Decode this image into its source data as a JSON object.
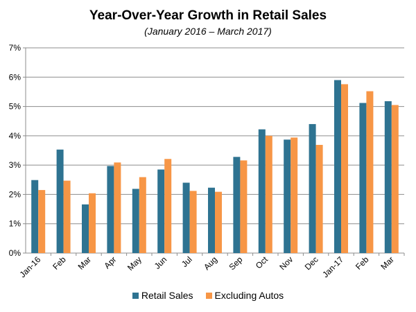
{
  "chart_data": {
    "type": "bar",
    "title": "Year-Over-Year  Growth  in Retail Sales",
    "subtitle": "(January 2016 – March 2017)",
    "xlabel": "",
    "ylabel": "",
    "ylim": [
      0,
      7
    ],
    "yticks": [
      "0%",
      "1%",
      "2%",
      "3%",
      "4%",
      "5%",
      "6%",
      "7%"
    ],
    "categories": [
      "Jan-16",
      "Feb",
      "Mar",
      "Apr",
      "May",
      "Jun",
      "Jul",
      "Aug",
      "Sep",
      "Oct",
      "Nov",
      "Dec",
      "Jan-17",
      "Feb",
      "Mar"
    ],
    "series": [
      {
        "name": "Retail Sales",
        "color": "#2e7391",
        "values": [
          2.49,
          3.53,
          1.66,
          2.97,
          2.19,
          2.85,
          2.4,
          2.23,
          3.28,
          4.22,
          3.87,
          4.4,
          5.9,
          5.12,
          5.18
        ]
      },
      {
        "name": "Excluding Autos",
        "color": "#f79646",
        "values": [
          2.15,
          2.47,
          2.04,
          3.09,
          2.59,
          3.21,
          2.12,
          2.09,
          3.16,
          4.0,
          3.94,
          3.69,
          5.76,
          5.52,
          5.05
        ]
      }
    ],
    "legend_position": "bottom",
    "grid": true
  }
}
